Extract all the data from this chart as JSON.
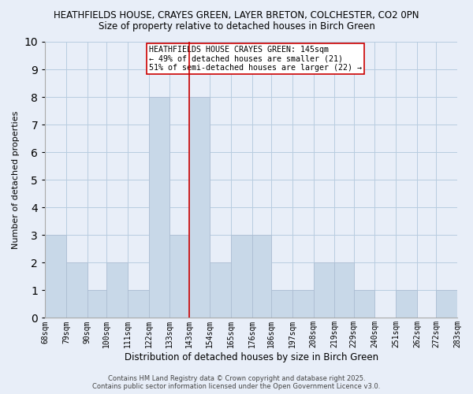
{
  "title": "HEATHFIELDS HOUSE, CRAYES GREEN, LAYER BRETON, COLCHESTER, CO2 0PN",
  "subtitle": "Size of property relative to detached houses in Birch Green",
  "xlabel": "Distribution of detached houses by size in Birch Green",
  "ylabel": "Number of detached properties",
  "bin_edges": [
    68,
    79,
    90,
    100,
    111,
    122,
    133,
    143,
    154,
    165,
    176,
    186,
    197,
    208,
    219,
    229,
    240,
    251,
    262,
    272,
    283
  ],
  "bin_labels": [
    "68sqm",
    "79sqm",
    "90sqm",
    "100sqm",
    "111sqm",
    "122sqm",
    "133sqm",
    "143sqm",
    "154sqm",
    "165sqm",
    "176sqm",
    "186sqm",
    "197sqm",
    "208sqm",
    "219sqm",
    "229sqm",
    "240sqm",
    "251sqm",
    "262sqm",
    "272sqm",
    "283sqm"
  ],
  "counts": [
    3,
    2,
    1,
    2,
    1,
    8,
    3,
    8,
    2,
    3,
    3,
    1,
    1,
    2,
    2,
    1,
    0,
    1,
    0,
    1
  ],
  "bar_color": "#c8d8e8",
  "bar_edge_color": "#aabbd0",
  "reference_line_x": 143,
  "reference_line_color": "#cc0000",
  "ylim": [
    0,
    10
  ],
  "yticks": [
    0,
    1,
    2,
    3,
    4,
    5,
    6,
    7,
    8,
    9,
    10
  ],
  "grid_color": "#b8cce0",
  "bg_color": "#e8eef8",
  "annotation_title": "HEATHFIELDS HOUSE CRAYES GREEN: 145sqm",
  "annotation_line1": "← 49% of detached houses are smaller (21)",
  "annotation_line2": "51% of semi-detached houses are larger (22) →",
  "annotation_box_color": "#ffffff",
  "annotation_box_edge": "#cc0000",
  "footer1": "Contains HM Land Registry data © Crown copyright and database right 2025.",
  "footer2": "Contains public sector information licensed under the Open Government Licence v3.0."
}
